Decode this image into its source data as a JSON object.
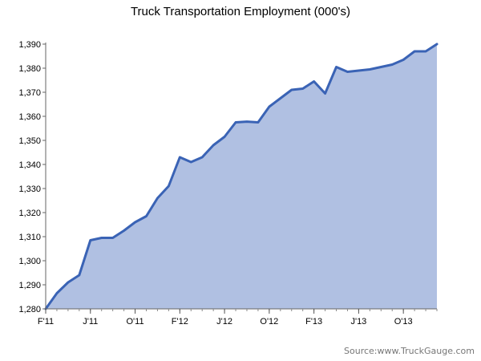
{
  "chart_data": {
    "type": "area",
    "title": "Truck Transportation Employment (000's)",
    "xlabel": "",
    "ylabel": "",
    "ylim": [
      1280,
      1390
    ],
    "yticks": [
      1280,
      1290,
      1300,
      1310,
      1320,
      1330,
      1340,
      1350,
      1360,
      1370,
      1380,
      1390
    ],
    "ytick_labels": [
      "1,280",
      "1,290",
      "1,300",
      "1,310",
      "1,320",
      "1,330",
      "1,340",
      "1,350",
      "1,360",
      "1,370",
      "1,380",
      "1,390"
    ],
    "xticks": [
      {
        "label": "F'11",
        "index": 0
      },
      {
        "label": "J'11",
        "index": 4
      },
      {
        "label": "O'11",
        "index": 8
      },
      {
        "label": "F'12",
        "index": 12
      },
      {
        "label": "J'12",
        "index": 16
      },
      {
        "label": "O'12",
        "index": 20
      },
      {
        "label": "F'13",
        "index": 24
      },
      {
        "label": "J'13",
        "index": 28
      },
      {
        "label": "O'13",
        "index": 32
      }
    ],
    "grid": false,
    "fill_color": "#b0c0e2",
    "line_color": "#3a63b5",
    "series": [
      {
        "values": [
          1280.0,
          1286.5,
          1291.0,
          1294.0,
          1308.5,
          1309.5,
          1309.5,
          1312.5,
          1316.0,
          1318.5,
          1326.0,
          1331.0,
          1343.0,
          1341.0,
          1343.0,
          1348.0,
          1351.5,
          1357.5,
          1357.8,
          1357.5,
          1364.0,
          1367.5,
          1371.0,
          1371.5,
          1374.5,
          1369.5,
          1380.5,
          1378.5,
          1379.0,
          1379.5,
          1380.5,
          1381.5,
          1383.5,
          1387.0,
          1387.0,
          1390.0
        ]
      }
    ]
  },
  "source": "Source:www.TruckGauge.com"
}
